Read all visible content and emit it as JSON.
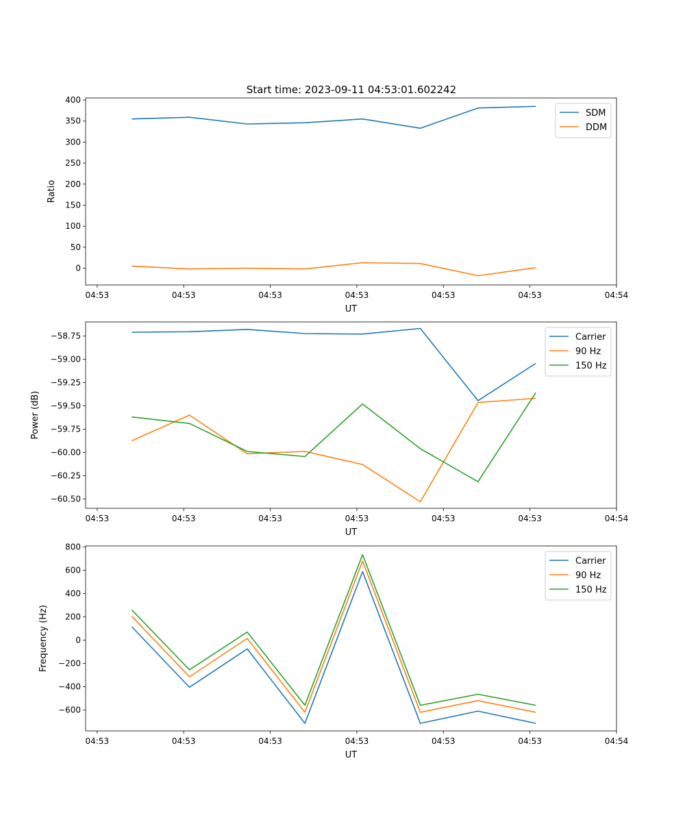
{
  "figure": {
    "title": "Start time: 2023-09-11 04:53:01.602242"
  },
  "chart_data": [
    {
      "type": "line",
      "xlabel": "UT",
      "ylabel": "Ratio",
      "x": [
        1,
        2,
        3,
        4,
        5,
        6,
        7,
        8
      ],
      "xlim": [
        0.2,
        9.4
      ],
      "xticks": [
        0.4,
        1.9,
        3.4,
        4.9,
        6.4,
        7.9,
        9.4
      ],
      "xtick_labels": [
        "04:53",
        "04:53",
        "04:53",
        "04:53",
        "04:53",
        "04:53",
        "04:54"
      ],
      "ylim": [
        -40,
        405
      ],
      "yticks": [
        0,
        50,
        100,
        150,
        200,
        250,
        300,
        350,
        400
      ],
      "ytick_labels": [
        "0",
        "50",
        "100",
        "150",
        "200",
        "250",
        "300",
        "350",
        "400"
      ],
      "legend": "upper right",
      "series": [
        {
          "name": "SDM",
          "color": "#1f77b4",
          "values": [
            355,
            359,
            343,
            346,
            355,
            333,
            381,
            385
          ]
        },
        {
          "name": "DDM",
          "color": "#ff7f0e",
          "values": [
            5,
            -2,
            0,
            -2,
            13,
            11,
            -18,
            1
          ]
        }
      ]
    },
    {
      "type": "line",
      "xlabel": "UT",
      "ylabel": "Power (dB)",
      "x": [
        1,
        2,
        3,
        4,
        5,
        6,
        7,
        8
      ],
      "xlim": [
        0.2,
        9.4
      ],
      "xticks": [
        0.4,
        1.9,
        3.4,
        4.9,
        6.4,
        7.9,
        9.4
      ],
      "xtick_labels": [
        "04:53",
        "04:53",
        "04:53",
        "04:53",
        "04:53",
        "04:53",
        "04:54"
      ],
      "ylim": [
        -60.6,
        -58.6
      ],
      "yticks": [
        -60.5,
        -60.25,
        -60.0,
        -59.75,
        -59.5,
        -59.25,
        -59.0,
        -58.75
      ],
      "ytick_labels": [
        "−60.50",
        "−60.25",
        "−60.00",
        "−59.75",
        "−59.50",
        "−59.25",
        "−59.00",
        "−58.75"
      ],
      "legend": "upper right",
      "series": [
        {
          "name": "Carrier",
          "color": "#1f77b4",
          "values": [
            -58.71,
            -58.705,
            -58.68,
            -58.725,
            -58.73,
            -58.67,
            -59.445,
            -59.045
          ]
        },
        {
          "name": "90 Hz",
          "color": "#ff7f0e",
          "values": [
            -59.875,
            -59.6,
            -60.015,
            -59.99,
            -60.13,
            -60.53,
            -59.465,
            -59.42
          ]
        },
        {
          "name": "150 Hz",
          "color": "#2ca02c",
          "values": [
            -59.62,
            -59.69,
            -59.99,
            -60.045,
            -59.48,
            -59.96,
            -60.315,
            -59.36
          ]
        }
      ]
    },
    {
      "type": "line",
      "xlabel": "UT",
      "ylabel": "Frequency (Hz)",
      "x": [
        1,
        2,
        3,
        4,
        5,
        6,
        7,
        8
      ],
      "xlim": [
        0.2,
        9.4
      ],
      "xticks": [
        0.4,
        1.9,
        3.4,
        4.9,
        6.4,
        7.9,
        9.4
      ],
      "xtick_labels": [
        "04:53",
        "04:53",
        "04:53",
        "04:53",
        "04:53",
        "04:53",
        "04:54"
      ],
      "ylim": [
        -780,
        810
      ],
      "yticks": [
        -600,
        -400,
        -200,
        0,
        200,
        400,
        600,
        800
      ],
      "ytick_labels": [
        "−600",
        "−400",
        "−200",
        "0",
        "200",
        "400",
        "600",
        "800"
      ],
      "legend": "upper right",
      "series": [
        {
          "name": "Carrier",
          "color": "#1f77b4",
          "values": [
            115,
            -405,
            -75,
            -715,
            590,
            -715,
            -610,
            -715
          ]
        },
        {
          "name": "90 Hz",
          "color": "#ff7f0e",
          "values": [
            205,
            -315,
            15,
            -620,
            680,
            -620,
            -520,
            -620
          ]
        },
        {
          "name": "150 Hz",
          "color": "#2ca02c",
          "values": [
            260,
            -255,
            70,
            -560,
            735,
            -560,
            -465,
            -560
          ]
        }
      ]
    }
  ]
}
